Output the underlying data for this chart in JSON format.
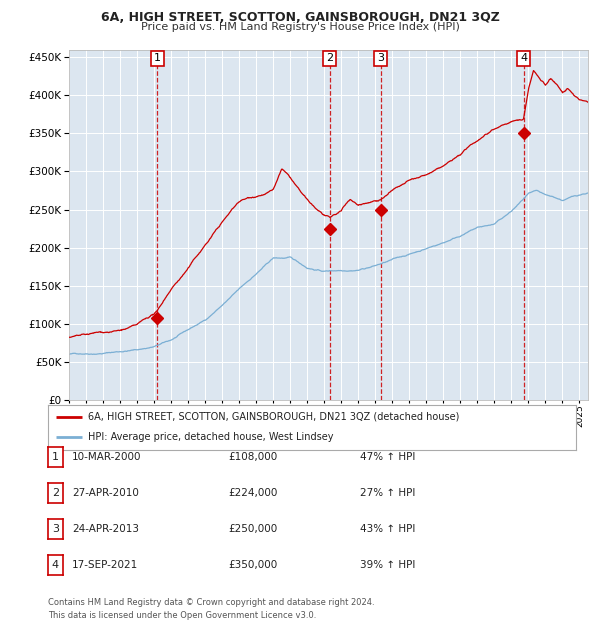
{
  "title": "6A, HIGH STREET, SCOTTON, GAINSBOROUGH, DN21 3QZ",
  "subtitle": "Price paid vs. HM Land Registry's House Price Index (HPI)",
  "fig_bg_color": "#ffffff",
  "plot_bg_color": "#dce6f0",
  "red_line_color": "#cc0000",
  "blue_line_color": "#7bafd4",
  "sale_marker_color": "#cc0000",
  "vline_color": "#cc0000",
  "grid_color": "#ffffff",
  "ylim": [
    0,
    460000
  ],
  "yticks": [
    0,
    50000,
    100000,
    150000,
    200000,
    250000,
    300000,
    350000,
    400000,
    450000
  ],
  "sales": [
    {
      "label": "1",
      "date_str": "10-MAR-2000",
      "x": 2000.19,
      "price": 108000
    },
    {
      "label": "2",
      "date_str": "27-APR-2010",
      "x": 2010.32,
      "price": 224000
    },
    {
      "label": "3",
      "date_str": "24-APR-2013",
      "x": 2013.32,
      "price": 250000
    },
    {
      "label": "4",
      "date_str": "17-SEP-2021",
      "x": 2021.71,
      "price": 350000
    }
  ],
  "legend_red": "6A, HIGH STREET, SCOTTON, GAINSBOROUGH, DN21 3QZ (detached house)",
  "legend_blue": "HPI: Average price, detached house, West Lindsey",
  "table_rows": [
    {
      "num": "1",
      "date": "10-MAR-2000",
      "price": "£108,000",
      "pct": "47% ↑ HPI"
    },
    {
      "num": "2",
      "date": "27-APR-2010",
      "price": "£224,000",
      "pct": "27% ↑ HPI"
    },
    {
      "num": "3",
      "date": "24-APR-2013",
      "price": "£250,000",
      "pct": "43% ↑ HPI"
    },
    {
      "num": "4",
      "date": "17-SEP-2021",
      "price": "£350,000",
      "pct": "39% ↑ HPI"
    }
  ],
  "footnote1": "Contains HM Land Registry data © Crown copyright and database right 2024.",
  "footnote2": "This data is licensed under the Open Government Licence v3.0.",
  "xmin": 1995.0,
  "xmax": 2025.5
}
